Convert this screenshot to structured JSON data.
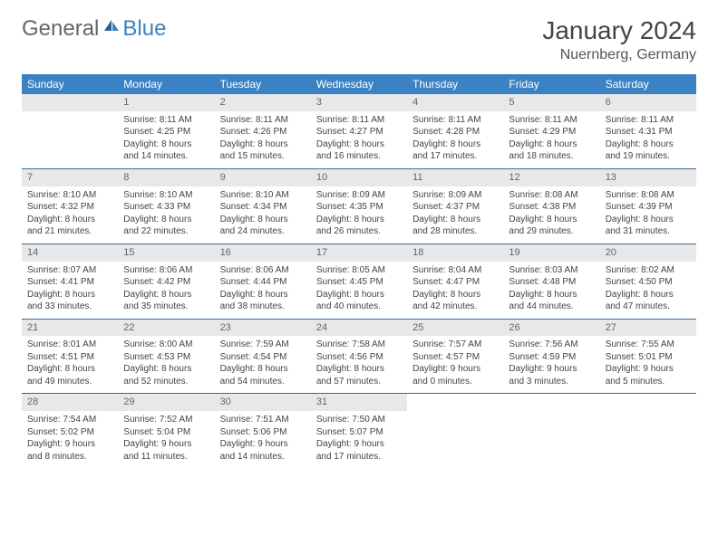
{
  "brand": {
    "general": "General",
    "blue": "Blue"
  },
  "header": {
    "month": "January 2024",
    "location": "Nuernberg, Germany"
  },
  "weekdays": [
    "Sunday",
    "Monday",
    "Tuesday",
    "Wednesday",
    "Thursday",
    "Friday",
    "Saturday"
  ],
  "colors": {
    "header_bg": "#3b82c4",
    "header_text": "#ffffff",
    "daynum_bg": "#e8e8e8",
    "rule": "#3b6a9a",
    "text": "#444444",
    "page_bg": "#ffffff"
  },
  "typography": {
    "title_fontsize": 28,
    "location_fontsize": 16,
    "weekday_fontsize": 12,
    "body_fontsize": 10
  },
  "layout": {
    "columns": 7,
    "rows": 5,
    "first_weekday_index": 1
  },
  "days": [
    {
      "n": "1",
      "sunrise": "Sunrise: 8:11 AM",
      "sunset": "Sunset: 4:25 PM",
      "daylight": "Daylight: 8 hours and 14 minutes."
    },
    {
      "n": "2",
      "sunrise": "Sunrise: 8:11 AM",
      "sunset": "Sunset: 4:26 PM",
      "daylight": "Daylight: 8 hours and 15 minutes."
    },
    {
      "n": "3",
      "sunrise": "Sunrise: 8:11 AM",
      "sunset": "Sunset: 4:27 PM",
      "daylight": "Daylight: 8 hours and 16 minutes."
    },
    {
      "n": "4",
      "sunrise": "Sunrise: 8:11 AM",
      "sunset": "Sunset: 4:28 PM",
      "daylight": "Daylight: 8 hours and 17 minutes."
    },
    {
      "n": "5",
      "sunrise": "Sunrise: 8:11 AM",
      "sunset": "Sunset: 4:29 PM",
      "daylight": "Daylight: 8 hours and 18 minutes."
    },
    {
      "n": "6",
      "sunrise": "Sunrise: 8:11 AM",
      "sunset": "Sunset: 4:31 PM",
      "daylight": "Daylight: 8 hours and 19 minutes."
    },
    {
      "n": "7",
      "sunrise": "Sunrise: 8:10 AM",
      "sunset": "Sunset: 4:32 PM",
      "daylight": "Daylight: 8 hours and 21 minutes."
    },
    {
      "n": "8",
      "sunrise": "Sunrise: 8:10 AM",
      "sunset": "Sunset: 4:33 PM",
      "daylight": "Daylight: 8 hours and 22 minutes."
    },
    {
      "n": "9",
      "sunrise": "Sunrise: 8:10 AM",
      "sunset": "Sunset: 4:34 PM",
      "daylight": "Daylight: 8 hours and 24 minutes."
    },
    {
      "n": "10",
      "sunrise": "Sunrise: 8:09 AM",
      "sunset": "Sunset: 4:35 PM",
      "daylight": "Daylight: 8 hours and 26 minutes."
    },
    {
      "n": "11",
      "sunrise": "Sunrise: 8:09 AM",
      "sunset": "Sunset: 4:37 PM",
      "daylight": "Daylight: 8 hours and 28 minutes."
    },
    {
      "n": "12",
      "sunrise": "Sunrise: 8:08 AM",
      "sunset": "Sunset: 4:38 PM",
      "daylight": "Daylight: 8 hours and 29 minutes."
    },
    {
      "n": "13",
      "sunrise": "Sunrise: 8:08 AM",
      "sunset": "Sunset: 4:39 PM",
      "daylight": "Daylight: 8 hours and 31 minutes."
    },
    {
      "n": "14",
      "sunrise": "Sunrise: 8:07 AM",
      "sunset": "Sunset: 4:41 PM",
      "daylight": "Daylight: 8 hours and 33 minutes."
    },
    {
      "n": "15",
      "sunrise": "Sunrise: 8:06 AM",
      "sunset": "Sunset: 4:42 PM",
      "daylight": "Daylight: 8 hours and 35 minutes."
    },
    {
      "n": "16",
      "sunrise": "Sunrise: 8:06 AM",
      "sunset": "Sunset: 4:44 PM",
      "daylight": "Daylight: 8 hours and 38 minutes."
    },
    {
      "n": "17",
      "sunrise": "Sunrise: 8:05 AM",
      "sunset": "Sunset: 4:45 PM",
      "daylight": "Daylight: 8 hours and 40 minutes."
    },
    {
      "n": "18",
      "sunrise": "Sunrise: 8:04 AM",
      "sunset": "Sunset: 4:47 PM",
      "daylight": "Daylight: 8 hours and 42 minutes."
    },
    {
      "n": "19",
      "sunrise": "Sunrise: 8:03 AM",
      "sunset": "Sunset: 4:48 PM",
      "daylight": "Daylight: 8 hours and 44 minutes."
    },
    {
      "n": "20",
      "sunrise": "Sunrise: 8:02 AM",
      "sunset": "Sunset: 4:50 PM",
      "daylight": "Daylight: 8 hours and 47 minutes."
    },
    {
      "n": "21",
      "sunrise": "Sunrise: 8:01 AM",
      "sunset": "Sunset: 4:51 PM",
      "daylight": "Daylight: 8 hours and 49 minutes."
    },
    {
      "n": "22",
      "sunrise": "Sunrise: 8:00 AM",
      "sunset": "Sunset: 4:53 PM",
      "daylight": "Daylight: 8 hours and 52 minutes."
    },
    {
      "n": "23",
      "sunrise": "Sunrise: 7:59 AM",
      "sunset": "Sunset: 4:54 PM",
      "daylight": "Daylight: 8 hours and 54 minutes."
    },
    {
      "n": "24",
      "sunrise": "Sunrise: 7:58 AM",
      "sunset": "Sunset: 4:56 PM",
      "daylight": "Daylight: 8 hours and 57 minutes."
    },
    {
      "n": "25",
      "sunrise": "Sunrise: 7:57 AM",
      "sunset": "Sunset: 4:57 PM",
      "daylight": "Daylight: 9 hours and 0 minutes."
    },
    {
      "n": "26",
      "sunrise": "Sunrise: 7:56 AM",
      "sunset": "Sunset: 4:59 PM",
      "daylight": "Daylight: 9 hours and 3 minutes."
    },
    {
      "n": "27",
      "sunrise": "Sunrise: 7:55 AM",
      "sunset": "Sunset: 5:01 PM",
      "daylight": "Daylight: 9 hours and 5 minutes."
    },
    {
      "n": "28",
      "sunrise": "Sunrise: 7:54 AM",
      "sunset": "Sunset: 5:02 PM",
      "daylight": "Daylight: 9 hours and 8 minutes."
    },
    {
      "n": "29",
      "sunrise": "Sunrise: 7:52 AM",
      "sunset": "Sunset: 5:04 PM",
      "daylight": "Daylight: 9 hours and 11 minutes."
    },
    {
      "n": "30",
      "sunrise": "Sunrise: 7:51 AM",
      "sunset": "Sunset: 5:06 PM",
      "daylight": "Daylight: 9 hours and 14 minutes."
    },
    {
      "n": "31",
      "sunrise": "Sunrise: 7:50 AM",
      "sunset": "Sunset: 5:07 PM",
      "daylight": "Daylight: 9 hours and 17 minutes."
    }
  ]
}
